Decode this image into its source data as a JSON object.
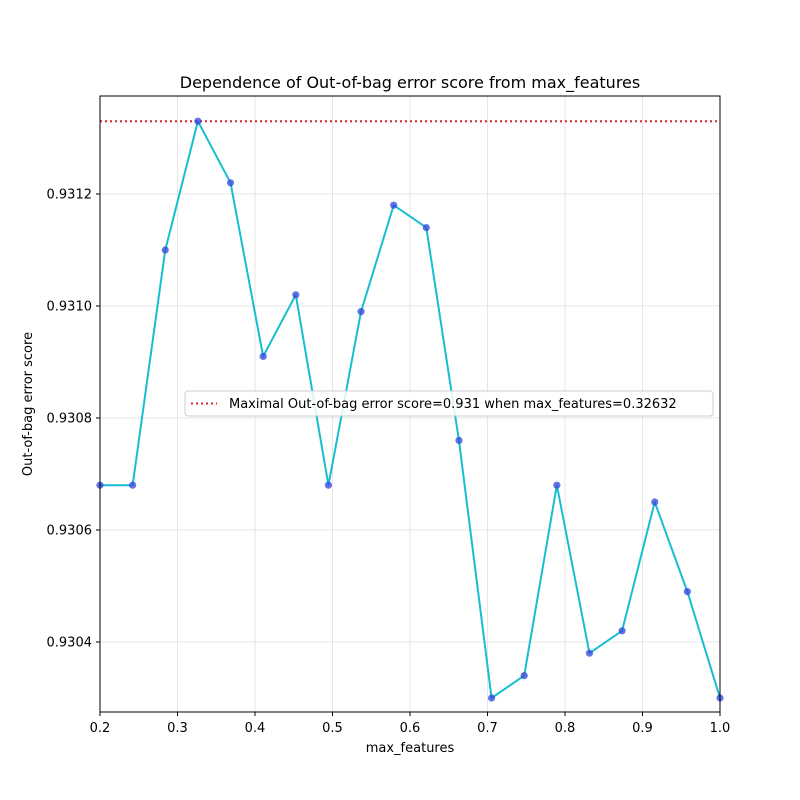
{
  "chart_data": {
    "type": "line",
    "title": "Dependence of Out-of-bag error score from max_features",
    "xlabel": "max_features",
    "ylabel": "Out-of-bag error score",
    "xlim": [
      0.2,
      1.0
    ],
    "ylim": [
      0.930275,
      0.931375
    ],
    "xticks": [
      0.2,
      0.3,
      0.4,
      0.5,
      0.6,
      0.7,
      0.8,
      0.9,
      1.0
    ],
    "xtick_labels": [
      "0.2",
      "0.3",
      "0.4",
      "0.5",
      "0.6",
      "0.7",
      "0.8",
      "0.9",
      "1.0"
    ],
    "yticks": [
      0.9304,
      0.9306,
      0.9308,
      0.931,
      0.9312
    ],
    "ytick_labels": [
      "0.9304",
      "0.9306",
      "0.9308",
      "0.9310",
      "0.9312"
    ],
    "grid": true,
    "legend_position": "center-right",
    "series": [
      {
        "x": [
          0.2,
          0.24211,
          0.28421,
          0.32632,
          0.36842,
          0.41053,
          0.45263,
          0.49474,
          0.53684,
          0.57895,
          0.62105,
          0.66316,
          0.70526,
          0.74737,
          0.78947,
          0.83158,
          0.87368,
          0.91579,
          0.95789,
          1.0
        ],
        "y": [
          0.93068,
          0.93068,
          0.9311,
          0.93133,
          0.93122,
          0.93091,
          0.93102,
          0.93068,
          0.93099,
          0.93118,
          0.93114,
          0.93076,
          0.9303,
          0.93034,
          0.93068,
          0.93038,
          0.93042,
          0.93065,
          0.93049,
          0.9303
        ],
        "line_color": "#17becf",
        "marker_color": "#3344dd"
      }
    ],
    "reference_line": {
      "name": "Maximal Out-of-bag error score=0.931 when max_features=0.32632",
      "y": 0.93133,
      "color": "#d62728",
      "style": "dotted"
    }
  }
}
